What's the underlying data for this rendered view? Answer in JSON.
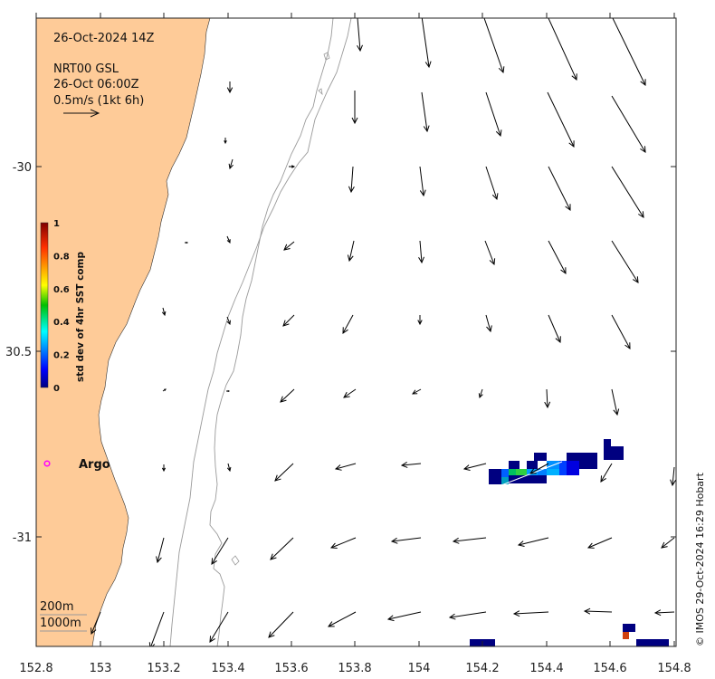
{
  "title": "26-Oct-2024 14Z",
  "product": "NRT00 GSL",
  "product_time": "26-Oct 06:00Z",
  "scale_text": "0.5m/s (1kt 6h)",
  "colorbar": {
    "title": "std dev of 4hr SST comp",
    "ticks": [
      "0",
      "0.2",
      "0.4",
      "0.6",
      "0.8",
      "1"
    ]
  },
  "argo_label": "Argo",
  "isobath_labels": [
    "200m",
    "1000m"
  ],
  "credit": "© IMOS 29-Oct-2024 16:29 Hobart",
  "colors": {
    "land": "#fecb98",
    "argo": "#ff00ff",
    "contour": "#9a9a9a"
  },
  "axes": {
    "x_ticks": [
      "152.8",
      "153",
      "153.2",
      "153.4",
      "153.6",
      "153.8",
      "154",
      "154.2",
      "154.4",
      "154.6",
      "154.8"
    ],
    "y_ticks": [
      "-30",
      "30.5",
      "-31"
    ]
  }
}
